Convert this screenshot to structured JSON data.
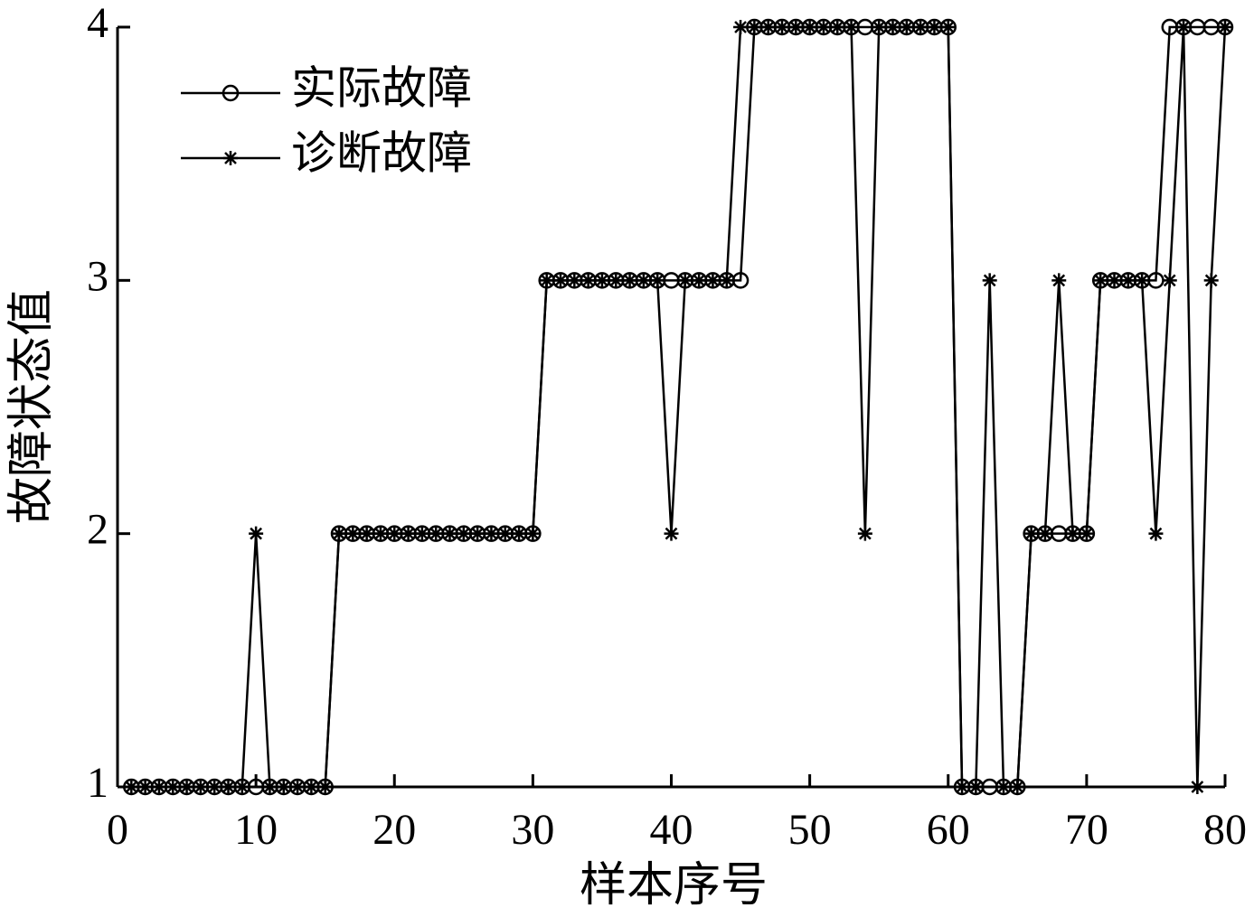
{
  "chart_data": {
    "type": "line",
    "x_label": "样本序号",
    "y_label": "故障状态值",
    "x": [
      1,
      2,
      3,
      4,
      5,
      6,
      7,
      8,
      9,
      10,
      11,
      12,
      13,
      14,
      15,
      16,
      17,
      18,
      19,
      20,
      21,
      22,
      23,
      24,
      25,
      26,
      27,
      28,
      29,
      30,
      31,
      32,
      33,
      34,
      35,
      36,
      37,
      38,
      39,
      40,
      41,
      42,
      43,
      44,
      45,
      46,
      47,
      48,
      49,
      50,
      51,
      52,
      53,
      54,
      55,
      56,
      57,
      58,
      59,
      60,
      61,
      62,
      63,
      64,
      65,
      66,
      67,
      68,
      69,
      70,
      71,
      72,
      73,
      74,
      75,
      76,
      77,
      78,
      79,
      80
    ],
    "series": [
      {
        "name": "实际故障",
        "color": "#000000",
        "marker": "circle",
        "values": [
          1,
          1,
          1,
          1,
          1,
          1,
          1,
          1,
          1,
          1,
          1,
          1,
          1,
          1,
          1,
          2,
          2,
          2,
          2,
          2,
          2,
          2,
          2,
          2,
          2,
          2,
          2,
          2,
          2,
          2,
          3,
          3,
          3,
          3,
          3,
          3,
          3,
          3,
          3,
          3,
          3,
          3,
          3,
          3,
          3,
          4,
          4,
          4,
          4,
          4,
          4,
          4,
          4,
          4,
          4,
          4,
          4,
          4,
          4,
          4,
          1,
          1,
          1,
          1,
          1,
          2,
          2,
          2,
          2,
          2,
          3,
          3,
          3,
          3,
          3,
          4,
          4,
          4,
          4,
          4
        ]
      },
      {
        "name": "诊断故障",
        "color": "#000000",
        "marker": "star",
        "values": [
          1,
          1,
          1,
          1,
          1,
          1,
          1,
          1,
          1,
          2,
          1,
          1,
          1,
          1,
          1,
          2,
          2,
          2,
          2,
          2,
          2,
          2,
          2,
          2,
          2,
          2,
          2,
          2,
          2,
          2,
          3,
          3,
          3,
          3,
          3,
          3,
          3,
          3,
          3,
          2,
          3,
          3,
          3,
          3,
          4,
          4,
          4,
          4,
          4,
          4,
          4,
          4,
          4,
          2,
          4,
          4,
          4,
          4,
          4,
          4,
          1,
          1,
          3,
          1,
          1,
          2,
          2,
          3,
          2,
          2,
          3,
          3,
          3,
          3,
          2,
          3,
          4,
          1,
          3,
          4
        ]
      }
    ],
    "xlim": [
      0,
      80
    ],
    "xticks": [
      0,
      10,
      20,
      30,
      40,
      50,
      60,
      70,
      80
    ],
    "ylim": [
      1,
      4
    ],
    "yticks": [
      1,
      2,
      3,
      4
    ],
    "legend": "upper-left",
    "grid": false
  }
}
